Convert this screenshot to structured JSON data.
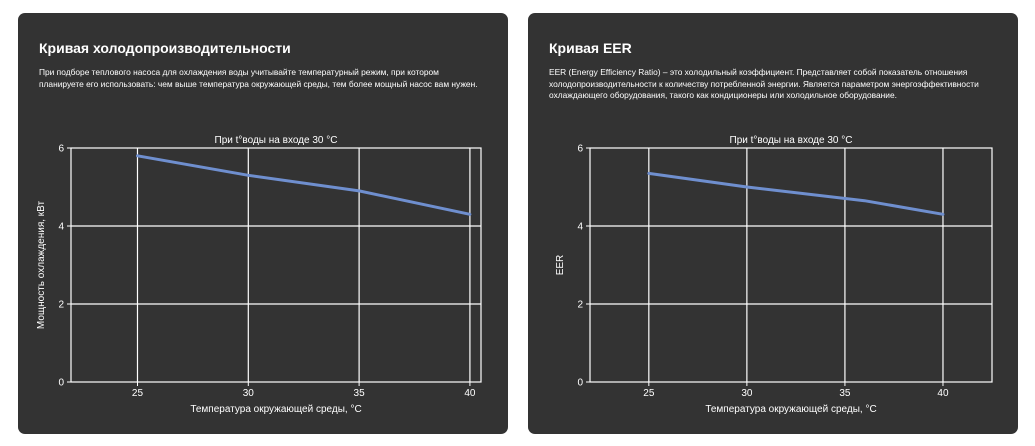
{
  "cards": [
    {
      "title": "Кривая холодопроизводительности",
      "description": "При подборе теплового насоса для охлаждения воды учитывайте температурный режим, при котором планируете его использовать: чем выше температура окружающей среды, тем более мощный насос вам нужен."
    },
    {
      "title": "Кривая EER",
      "description": "EER (Energy Efficiency Ratio) – это холодильный коэффициент. Представляет собой показатель отношения холодопроизводительности к количеству потребленной энергии. Является параметром энергоэффективности охлаждающего оборудования, такого как кондиционеры или холодильное оборудование."
    }
  ],
  "chart_data": [
    {
      "type": "line",
      "title": "При t°воды на входе 30 °С",
      "xlabel": "Температура окружающей среды, °С",
      "ylabel": "Мощность охлаждения, кВт",
      "xticks": [
        25,
        30,
        35,
        40
      ],
      "yticks": [
        0,
        2,
        4,
        6
      ],
      "xlim": [
        22,
        40.5
      ],
      "ylim": [
        0,
        6
      ],
      "grid": true,
      "series_color": "#6f8fcf",
      "series": [
        {
          "x": [
            25,
            30,
            35,
            40
          ],
          "y": [
            5.8,
            5.3,
            4.9,
            4.3
          ]
        }
      ]
    },
    {
      "type": "line",
      "title": "При t°воды на входе 30 °С",
      "xlabel": "Температура окружающей среды, °С",
      "ylabel": "EER",
      "xticks": [
        25,
        30,
        35,
        40
      ],
      "yticks": [
        0,
        2,
        4,
        6
      ],
      "xlim": [
        22,
        42.5
      ],
      "ylim": [
        0,
        6
      ],
      "grid": true,
      "series_color": "#6f8fcf",
      "series": [
        {
          "x": [
            25,
            30,
            36,
            40
          ],
          "y": [
            5.35,
            5.0,
            4.65,
            4.3
          ]
        }
      ]
    }
  ]
}
